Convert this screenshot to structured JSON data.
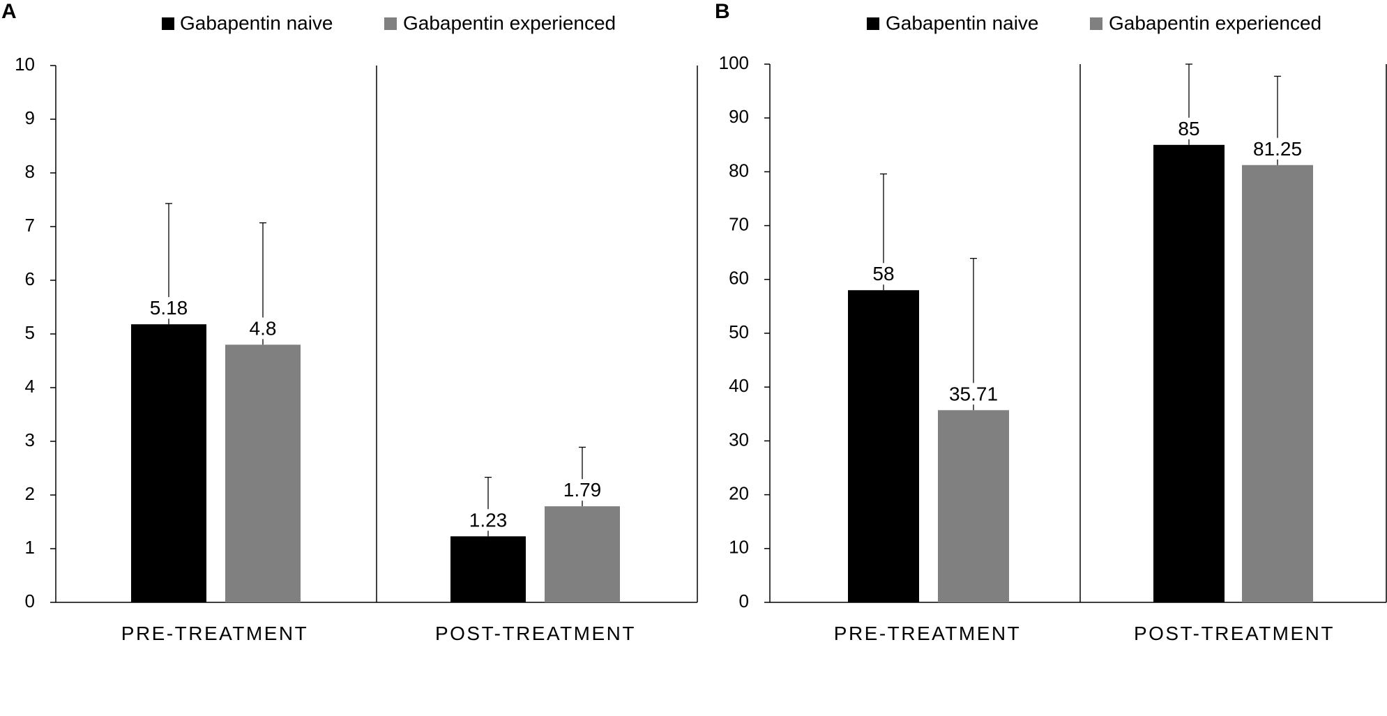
{
  "colors": {
    "naive": "#000000",
    "experienced": "#808080",
    "axis": "#000000",
    "background": "#ffffff"
  },
  "chart_data": [
    {
      "panel_label": "A",
      "type": "bar",
      "categories": [
        "PRE-TREATMENT",
        "POST-TREATMENT"
      ],
      "series": [
        {
          "name": "Gabapentin naive",
          "color_key": "naive",
          "values": [
            5.18,
            1.23
          ],
          "errors": [
            2.25,
            1.1
          ],
          "labels": [
            "5.18",
            "1.23"
          ]
        },
        {
          "name": "Gabapentin experienced",
          "color_key": "experienced",
          "values": [
            4.8,
            1.79
          ],
          "errors": [
            2.27,
            1.1
          ],
          "labels": [
            "4.8",
            "1.79"
          ]
        }
      ],
      "ylim": [
        0,
        10
      ],
      "yticks": [
        "0",
        "1",
        "2",
        "3",
        "4",
        "5",
        "6",
        "7",
        "8",
        "9",
        "10"
      ],
      "legend_position": "top",
      "grid": false,
      "xlabel": "",
      "ylabel": ""
    },
    {
      "panel_label": "B",
      "type": "bar",
      "categories": [
        "PRE-TREATMENT",
        "POST-TREATMENT"
      ],
      "series": [
        {
          "name": "Gabapentin naive",
          "color_key": "naive",
          "values": [
            58,
            85
          ],
          "errors": [
            21.6,
            15
          ],
          "labels": [
            "58",
            "85"
          ]
        },
        {
          "name": "Gabapentin experienced",
          "color_key": "experienced",
          "values": [
            35.71,
            81.25
          ],
          "errors": [
            28.2,
            16.5
          ],
          "labels": [
            "35.71",
            "81.25"
          ]
        }
      ],
      "ylim": [
        0,
        100
      ],
      "yticks": [
        "0",
        "10",
        "20",
        "30",
        "40",
        "50",
        "60",
        "70",
        "80",
        "90",
        "100"
      ],
      "legend_position": "top",
      "grid": false,
      "xlabel": "",
      "ylabel": ""
    }
  ]
}
